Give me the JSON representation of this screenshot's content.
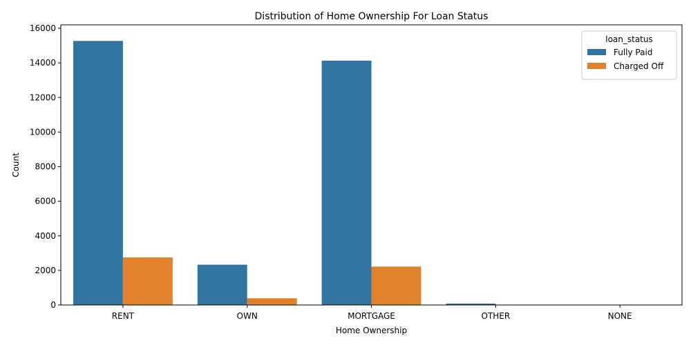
{
  "chart_data": {
    "type": "bar",
    "title": "Distribution of Home Ownership For Loan Status",
    "xlabel": "Home Ownership",
    "ylabel": "Count",
    "categories": [
      "RENT",
      "OWN",
      "MORTGAGE",
      "OTHER",
      "NONE"
    ],
    "series": [
      {
        "name": "Fully Paid",
        "color": "#3274a1",
        "values": [
          15270,
          2330,
          14130,
          80,
          3
        ]
      },
      {
        "name": "Charged Off",
        "color": "#e1812c",
        "values": [
          2750,
          390,
          2220,
          20,
          0
        ]
      }
    ],
    "ylim": [
      0,
      16200
    ],
    "yticks": [
      0,
      2000,
      4000,
      6000,
      8000,
      10000,
      12000,
      14000,
      16000
    ],
    "legend": {
      "title": "loan_status",
      "position": "top-right"
    },
    "grid": false
  }
}
